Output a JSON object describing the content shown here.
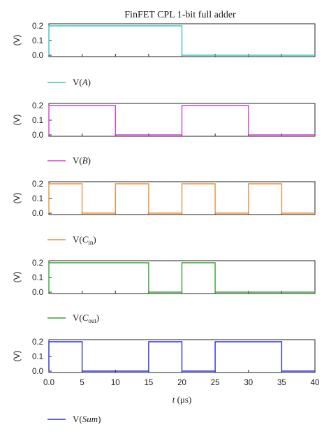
{
  "chart_data": {
    "type": "line",
    "title": "FinFET CPL 1-bit full adder",
    "xlabel": "t (μs)",
    "xlim": [
      0,
      40
    ],
    "x_ticks": [
      "0.0",
      "5",
      "10",
      "15",
      "20",
      "25",
      "30",
      "35",
      "40"
    ],
    "ylim": [
      0,
      0.2
    ],
    "y_ticks": [
      "0.0",
      "0.1",
      "0.2"
    ],
    "ylabel": "(V)",
    "grid": false,
    "panels": [
      {
        "name": "V(A)",
        "color": "#3cc3c0",
        "legend": {
          "prefix": "V(",
          "main": "A",
          "sub": "",
          "suffix": ")"
        },
        "x": [
          0,
          20,
          20,
          40
        ],
        "y": [
          0.2,
          0.2,
          0.0,
          0.0
        ]
      },
      {
        "name": "V(B)",
        "color": "#d63fd6",
        "legend": {
          "prefix": "V(",
          "main": "B",
          "sub": "",
          "suffix": ")"
        },
        "x": [
          0,
          10,
          10,
          20,
          20,
          30,
          30,
          40
        ],
        "y": [
          0.2,
          0.2,
          0.0,
          0.0,
          0.2,
          0.2,
          0.0,
          0.0
        ]
      },
      {
        "name": "V(Cin)",
        "color": "#e8923d",
        "legend": {
          "prefix": "V(",
          "main": "C",
          "sub": "in",
          "suffix": ")"
        },
        "x": [
          0,
          5,
          5,
          10,
          10,
          15,
          15,
          20,
          20,
          25,
          25,
          30,
          30,
          35,
          35,
          40
        ],
        "y": [
          0.2,
          0.2,
          0.0,
          0.0,
          0.2,
          0.2,
          0.0,
          0.0,
          0.2,
          0.2,
          0.0,
          0.0,
          0.2,
          0.2,
          0.0,
          0.0
        ]
      },
      {
        "name": "V(Cout)",
        "color": "#36a436",
        "legend": {
          "prefix": "V(",
          "main": "C",
          "sub": "out",
          "suffix": ")"
        },
        "x": [
          0,
          15,
          15,
          20,
          20,
          25,
          25,
          40
        ],
        "y": [
          0.2,
          0.2,
          0.0,
          0.0,
          0.2,
          0.2,
          0.0,
          0.0
        ]
      },
      {
        "name": "V(Sum)",
        "color": "#2b2fd6",
        "legend": {
          "prefix": "V(",
          "main": "Sum",
          "sub": "",
          "suffix": ")"
        },
        "x": [
          0,
          5,
          5,
          15,
          15,
          20,
          20,
          25,
          25,
          35,
          35,
          40
        ],
        "y": [
          0.2,
          0.2,
          0.0,
          0.0,
          0.2,
          0.2,
          0.0,
          0.0,
          0.2,
          0.2,
          0.0,
          0.0
        ]
      }
    ]
  }
}
